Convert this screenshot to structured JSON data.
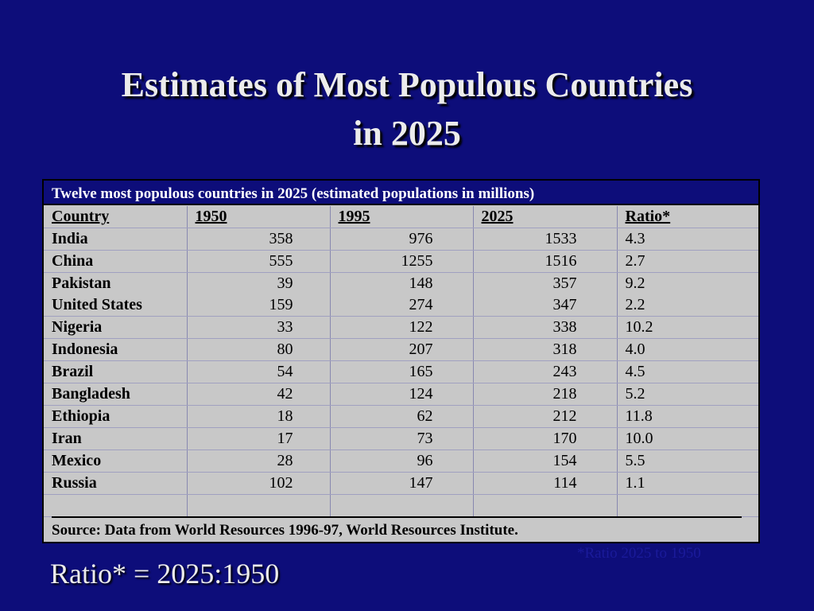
{
  "title": {
    "line1": "Estimates of Most Populous Countries",
    "line2": "in 2025"
  },
  "table": {
    "caption": "Twelve most populous countries in 2025   (estimated populations in millions)",
    "headers": [
      "Country",
      "1950",
      "1995",
      "2025",
      "Ratio*"
    ],
    "rows": [
      [
        "India",
        "358",
        "976",
        "1533",
        "4.3"
      ],
      [
        "China",
        "555",
        "1255",
        "1516",
        "2.7"
      ],
      [
        "Pakistan",
        "39",
        "148",
        "357",
        "9.2"
      ],
      [
        "United States",
        "159",
        "274",
        "347",
        "2.2"
      ],
      [
        "Nigeria",
        "33",
        "122",
        "338",
        "10.2"
      ],
      [
        "Indonesia",
        "80",
        "207",
        "318",
        "4.0"
      ],
      [
        "Brazil",
        "54",
        "165",
        "243",
        "4.5"
      ],
      [
        "Bangladesh",
        "42",
        "124",
        "218",
        "5.2"
      ],
      [
        "Ethiopia",
        "18",
        "62",
        "212",
        "11.8"
      ],
      [
        "Iran",
        "17",
        "73",
        "170",
        "10.0"
      ],
      [
        "Mexico",
        "28",
        "96",
        "154",
        "5.5"
      ],
      [
        "Russia",
        "102",
        "147",
        "114",
        "1.1"
      ]
    ],
    "source": "Source: Data from World Resources 1996-97, World Resources Institute."
  },
  "ratio_note": "*Ratio 2025 to 1950",
  "ratio_formula": "Ratio* = 2025:1950"
}
